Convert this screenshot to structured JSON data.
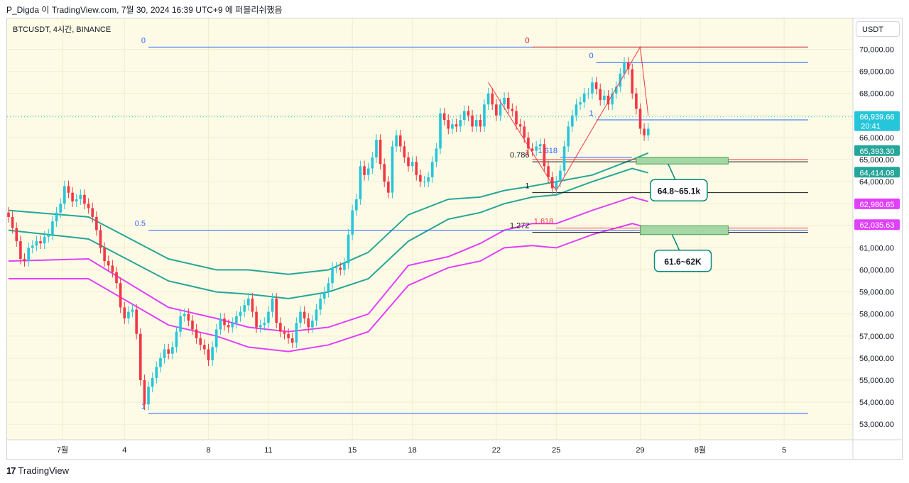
{
  "header": {
    "caption": "P_Digda 이 TradingView.com, 7월 30, 2024 16:39 UTC+9 에 퍼블리쉬했음",
    "symbol": "BTCUSDT, 4시간, BINANCE",
    "currency_button": "USDT"
  },
  "footer": {
    "brand": "TradingView",
    "logo": "17"
  },
  "colors": {
    "background": "#fdfbe5",
    "up": "#26c6da",
    "down": "#f23645",
    "teal_band": "#26a69a",
    "magenta_band": "#e040fb",
    "fib_blue": "#2962ff",
    "fib_black": "#131722",
    "fib_red": "#f23645",
    "zone_fill": "#a5d6a7"
  },
  "chart_data": {
    "type": "candlestick",
    "timeframe": "4h",
    "x_ticks": [
      "7월",
      "4",
      "8",
      "11",
      "15",
      "18",
      "22",
      "25",
      "29",
      "8월",
      "5"
    ],
    "y_ticks": [
      "53,000.00",
      "54,000.00",
      "55,000.00",
      "56,000.00",
      "57,000.00",
      "58,000.00",
      "59,000.00",
      "60,000.00",
      "61,000.00",
      "62,000.00",
      "63,000.00",
      "64,000.00",
      "65,000.00",
      "66,000.00",
      "67,000.00",
      "68,000.00",
      "69,000.00",
      "70,000.00"
    ],
    "ylim": [
      52300,
      71400
    ],
    "closes": [
      62400,
      61900,
      61300,
      60500,
      60400,
      61000,
      61100,
      61300,
      61200,
      61500,
      61600,
      62200,
      62600,
      63000,
      63800,
      63500,
      63100,
      63200,
      63400,
      63000,
      62800,
      62400,
      61800,
      61000,
      60400,
      60200,
      59900,
      59400,
      58300,
      57800,
      58100,
      58200,
      57100,
      55000,
      53900,
      54700,
      55100,
      55600,
      56000,
      56400,
      56200,
      56500,
      57200,
      57900,
      58000,
      57700,
      57300,
      56900,
      56600,
      56400,
      55900,
      56500,
      57300,
      57800,
      57500,
      57400,
      57600,
      57900,
      58100,
      58400,
      58700,
      58100,
      57400,
      57500,
      57600,
      58100,
      58700,
      57600,
      57200,
      57100,
      56900,
      56700,
      57600,
      58100,
      57800,
      57400,
      57700,
      58200,
      58700,
      59000,
      59400,
      60100,
      60100,
      60000,
      60300,
      61600,
      62700,
      63200,
      64700,
      64300,
      64600,
      65100,
      65900,
      64800,
      64000,
      63500,
      65600,
      66100,
      65600,
      65100,
      64700,
      64900,
      64300,
      64000,
      64000,
      64200,
      64900,
      65500,
      67100,
      66800,
      66400,
      66600,
      66500,
      66800,
      67200,
      67000,
      66500,
      66800,
      66500,
      67500,
      68000,
      67500,
      67000,
      67500,
      67800,
      67300,
      67200,
      66600,
      66500,
      66000,
      65500,
      65400,
      65600,
      65700,
      64700,
      64200,
      63700,
      64000,
      64500,
      65600,
      66500,
      67000,
      67500,
      67600,
      68000,
      68000,
      68500,
      68200,
      67700,
      67900,
      67500,
      68000,
      68300,
      68900,
      69400,
      69100,
      68000,
      67300,
      66400,
      66100,
      66400
    ],
    "lines": {
      "teal_upper": [
        [
          0,
          62700
        ],
        [
          20,
          62400
        ],
        [
          40,
          60500
        ],
        [
          52,
          60000
        ],
        [
          60,
          60000
        ],
        [
          70,
          59800
        ],
        [
          80,
          60000
        ],
        [
          90,
          60800
        ],
        [
          100,
          62500
        ],
        [
          110,
          63200
        ],
        [
          118,
          63300
        ],
        [
          124,
          63600
        ],
        [
          131,
          63800
        ],
        [
          140,
          64100
        ],
        [
          146,
          64300
        ],
        [
          156,
          65000
        ],
        [
          160,
          65300
        ]
      ],
      "teal_lower": [
        [
          0,
          61800
        ],
        [
          20,
          61400
        ],
        [
          40,
          59500
        ],
        [
          52,
          59000
        ],
        [
          60,
          58900
        ],
        [
          70,
          58700
        ],
        [
          80,
          59000
        ],
        [
          90,
          59600
        ],
        [
          100,
          61300
        ],
        [
          110,
          62300
        ],
        [
          118,
          62600
        ],
        [
          124,
          63000
        ],
        [
          131,
          63300
        ],
        [
          137,
          63400
        ],
        [
          146,
          64000
        ],
        [
          156,
          64600
        ],
        [
          160,
          64400
        ]
      ],
      "magenta_upper": [
        [
          0,
          60400
        ],
        [
          20,
          60500
        ],
        [
          40,
          58300
        ],
        [
          52,
          57800
        ],
        [
          60,
          57400
        ],
        [
          70,
          57200
        ],
        [
          80,
          57400
        ],
        [
          90,
          58000
        ],
        [
          100,
          60200
        ],
        [
          110,
          60600
        ],
        [
          118,
          61200
        ],
        [
          124,
          61800
        ],
        [
          131,
          62100
        ],
        [
          137,
          62100
        ],
        [
          146,
          62700
        ],
        [
          156,
          63300
        ],
        [
          160,
          63100
        ]
      ],
      "magenta_lower": [
        [
          0,
          59600
        ],
        [
          20,
          59600
        ],
        [
          40,
          57500
        ],
        [
          52,
          57000
        ],
        [
          60,
          56500
        ],
        [
          70,
          56300
        ],
        [
          80,
          56600
        ],
        [
          90,
          57200
        ],
        [
          100,
          59300
        ],
        [
          110,
          60100
        ],
        [
          118,
          60400
        ],
        [
          124,
          61000
        ],
        [
          131,
          61100
        ],
        [
          137,
          61000
        ],
        [
          146,
          61600
        ],
        [
          156,
          62100
        ],
        [
          160,
          61900
        ]
      ]
    },
    "current_price": {
      "value": "66,939.66",
      "countdown": "20:41"
    },
    "price_labels": [
      {
        "value": "65,393.30",
        "color": "#26a69a"
      },
      {
        "value": "64,414.08",
        "color": "#26a69a"
      },
      {
        "value": "62,980.65",
        "color": "#e040fb"
      },
      {
        "value": "62,035.63",
        "color": "#e040fb"
      }
    ],
    "fib_levels": [
      {
        "label": "0",
        "price": 70100,
        "from": 35,
        "to": 131,
        "color": "#2962ff"
      },
      {
        "label": "0.5",
        "price": 61800,
        "from": 35,
        "to": 200,
        "color": "#2962ff"
      },
      {
        "label": "1",
        "price": 53500,
        "from": 35,
        "to": 200,
        "color": "#2962ff"
      },
      {
        "label": "0",
        "price": 70100,
        "from": 131,
        "to": 200,
        "color": "#131722"
      },
      {
        "label": "0.786",
        "price": 64900,
        "from": 131,
        "to": 200,
        "color": "#131722"
      },
      {
        "label": "1",
        "price": 63500,
        "from": 131,
        "to": 200,
        "color": "#131722"
      },
      {
        "label": "1.272",
        "price": 61700,
        "from": 131,
        "to": 200,
        "color": "#131722"
      },
      {
        "label": "0",
        "price": 69400,
        "from": 147,
        "to": 200,
        "color": "#2962ff"
      },
      {
        "label": "1",
        "price": 66800,
        "from": 147,
        "to": 200,
        "color": "#2962ff"
      },
      {
        "label": "1.618",
        "price": 65100,
        "from": 138,
        "to": 156,
        "color": "#2962ff"
      },
      {
        "label": "0",
        "price": 70100,
        "from": 131,
        "to": 200,
        "color": "#f23645"
      },
      {
        "label": "1",
        "price": 65000,
        "from": 131,
        "to": 200,
        "color": "#f23645"
      },
      {
        "label": "1.618",
        "price": 61900,
        "from": 137,
        "to": 200,
        "color": "#f23645"
      }
    ],
    "zones": [
      {
        "label": "64.8~65.1k",
        "low": 64800,
        "high": 65100,
        "from": 157,
        "to": 180
      },
      {
        "label": "61.6~62K",
        "low": 61600,
        "high": 62000,
        "from": 158,
        "to": 180
      }
    ],
    "zigzag": [
      [
        120,
        68500
      ],
      [
        137,
        63600
      ],
      [
        158,
        70100
      ],
      [
        160,
        67000
      ]
    ]
  }
}
